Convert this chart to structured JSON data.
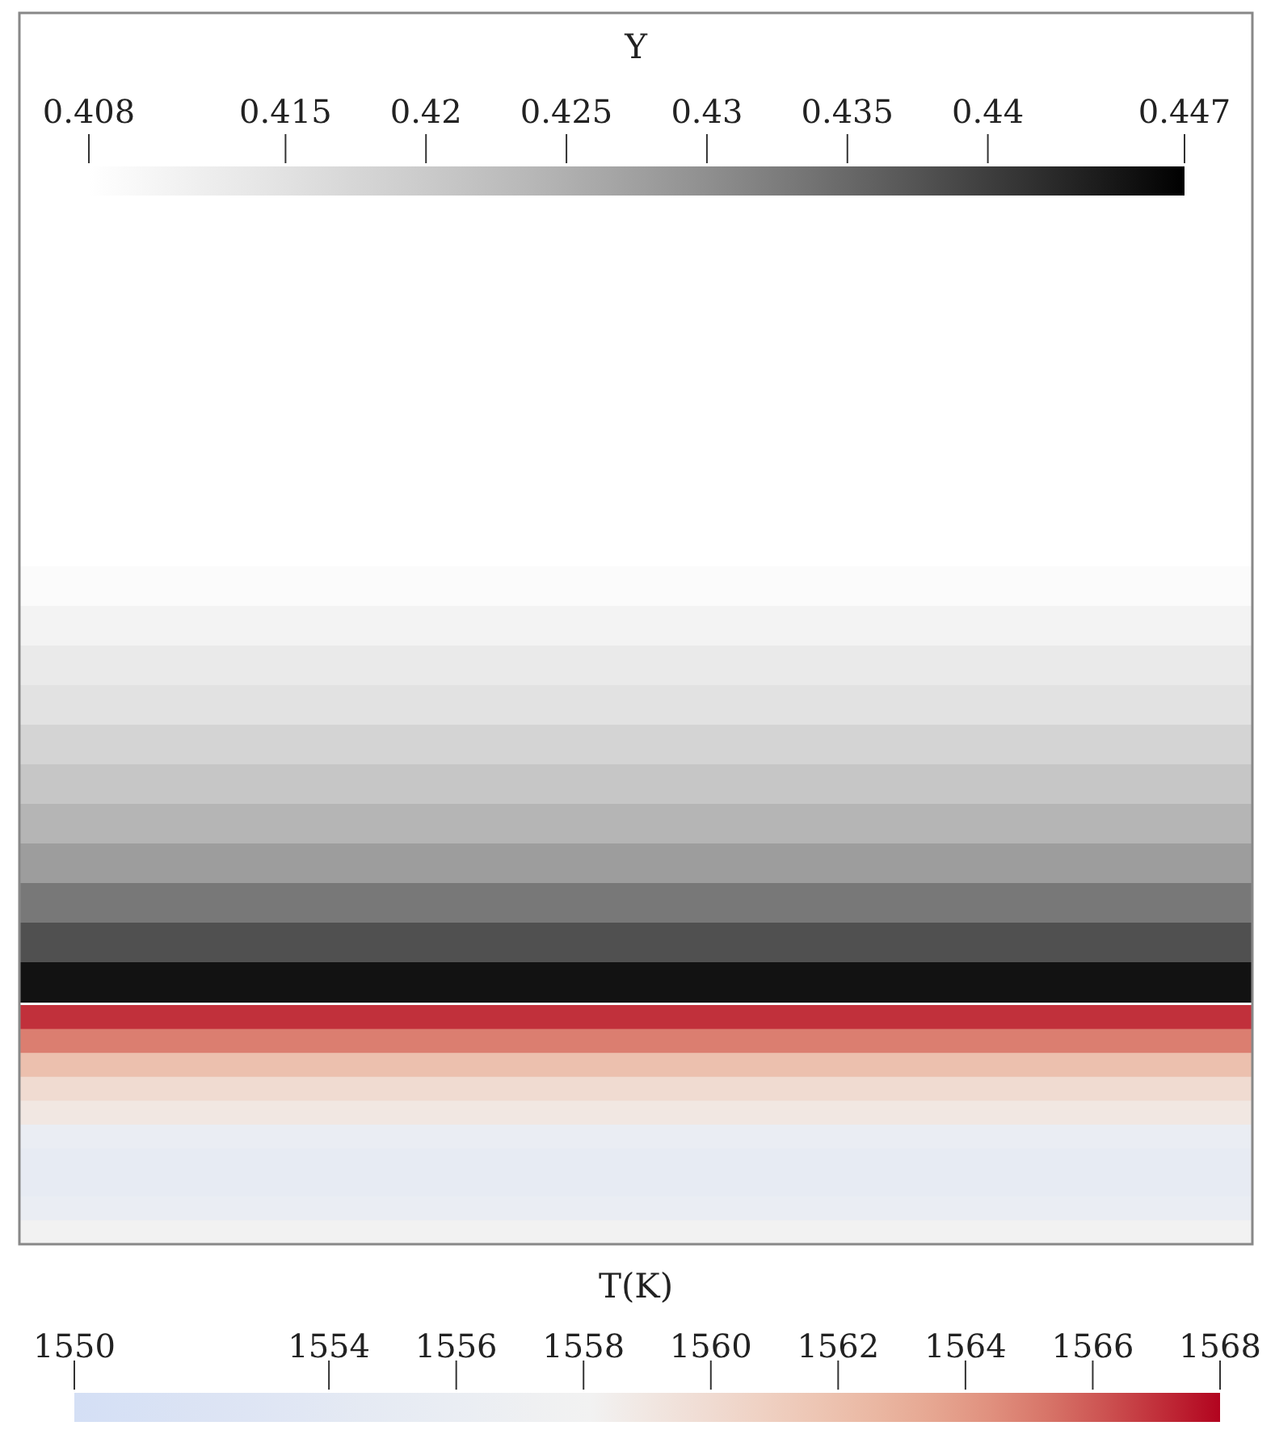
{
  "chart_data": [
    {
      "type": "heatmap",
      "clabel": "Y",
      "categories": [
        null
      ],
      "y_categories": [
        null,
        null,
        null,
        null,
        null,
        null,
        null,
        null,
        null,
        null,
        null,
        null,
        null,
        null,
        null,
        null,
        null,
        null,
        null,
        null
      ],
      "cells": [
        [
          0.408
        ],
        [
          0.408
        ],
        [
          0.408
        ],
        [
          0.408
        ],
        [
          0.408
        ],
        [
          0.408
        ],
        [
          0.408
        ],
        [
          0.408
        ],
        [
          0.408
        ],
        [
          0.409
        ],
        [
          0.411
        ],
        [
          0.413
        ],
        [
          0.415
        ],
        [
          0.418
        ],
        [
          0.421
        ],
        [
          0.424
        ],
        [
          0.428
        ],
        [
          0.433
        ],
        [
          0.438
        ],
        [
          0.445
        ]
      ],
      "clim": [
        0.408,
        0.447
      ],
      "cticks": [
        0.408,
        0.415,
        0.42,
        0.425,
        0.43,
        0.435,
        0.44,
        0.447
      ]
    },
    {
      "type": "heatmap",
      "clabel": "T(K)",
      "categories": [
        null
      ],
      "y_categories": [
        null,
        null,
        null,
        null,
        null,
        null,
        null,
        null,
        null,
        null
      ],
      "cells": [
        [
          1567
        ],
        [
          1565
        ],
        [
          1562
        ],
        [
          1560
        ],
        [
          1559
        ],
        [
          1556
        ],
        [
          1555
        ],
        [
          1555
        ],
        [
          1556
        ],
        [
          1558
        ]
      ],
      "clim": [
        1550,
        1568
      ],
      "cticks": [
        1550,
        1554,
        1556,
        1558,
        1560,
        1562,
        1564,
        1566,
        1568
      ]
    }
  ]
}
